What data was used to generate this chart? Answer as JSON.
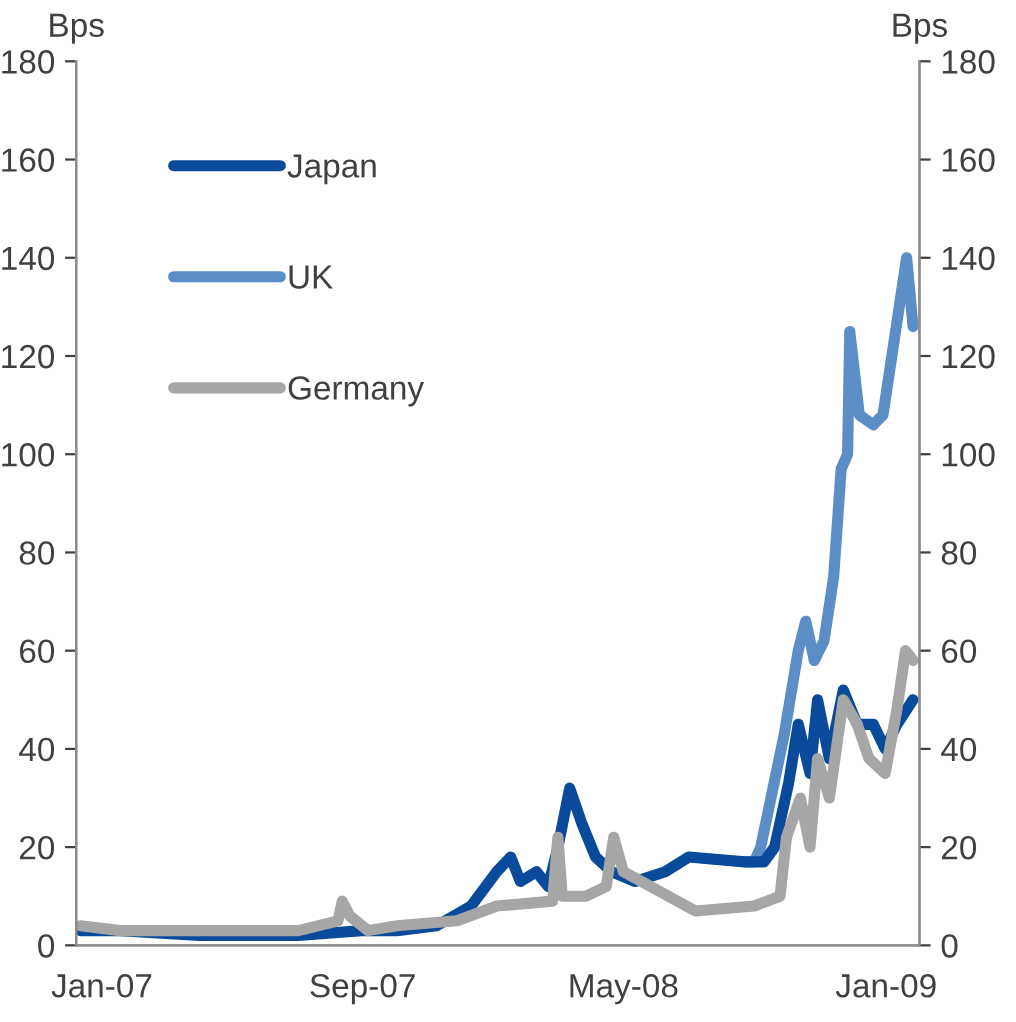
{
  "chart_data": {
    "type": "line",
    "ylabel": "Bps",
    "y2label": "Bps",
    "xlim": [
      "2006-12-08",
      "2009-02-01"
    ],
    "xticks": [
      {
        "value": "2007-01-01",
        "label": "Jan-07"
      },
      {
        "value": "2007-09-01",
        "label": "Sep-07"
      },
      {
        "value": "2008-05-01",
        "label": "May-08"
      },
      {
        "value": "2009-01-01",
        "label": "Jan-09"
      }
    ],
    "ylim": [
      0,
      180
    ],
    "yticks": [
      0,
      20,
      40,
      60,
      80,
      100,
      120,
      140,
      160,
      180
    ],
    "y2lim": [
      0,
      180
    ],
    "y2ticks": [
      0,
      20,
      40,
      60,
      80,
      100,
      120,
      140,
      160,
      180
    ],
    "grid": false,
    "legend": "top left",
    "marker": "none",
    "line_style": "solid",
    "series": [
      {
        "name": "UK",
        "color": "#5b8ec6",
        "x": [
          "2008-08-22",
          "2008-08-31",
          "2008-09-06",
          "2008-09-28",
          "2008-10-11",
          "2008-10-18",
          "2008-10-26",
          "2008-11-04",
          "2008-11-13",
          "2008-11-20",
          "2008-11-26",
          "2008-11-28",
          "2008-12-07",
          "2008-12-20",
          "2008-12-29",
          "2009-01-20",
          "2009-01-26"
        ],
        "values": [
          17,
          17,
          20,
          43,
          60,
          66,
          58,
          62,
          75,
          97,
          100,
          125,
          108,
          106,
          108,
          140,
          126
        ]
      },
      {
        "name": "Japan",
        "color": "#0a4a9a",
        "x": [
          "2006-12-12",
          "2007-01-18",
          "2007-04-02",
          "2007-07-03",
          "2007-08-31",
          "2007-10-03",
          "2007-11-09",
          "2007-12-11",
          "2008-01-04",
          "2008-01-17",
          "2008-01-26",
          "2008-02-10",
          "2008-02-21",
          "2008-03-01",
          "2008-03-12",
          "2008-03-23",
          "2008-04-05",
          "2008-04-20",
          "2008-05-12",
          "2008-06-09",
          "2008-07-01",
          "2008-08-22",
          "2008-09-09",
          "2008-09-19",
          "2008-10-02",
          "2008-10-11",
          "2008-10-22",
          "2008-10-29",
          "2008-11-09",
          "2008-11-22",
          "2008-12-05",
          "2008-12-20",
          "2008-12-31",
          "2009-01-11",
          "2009-01-26"
        ],
        "values": [
          3,
          3,
          2,
          2,
          3,
          3,
          4,
          8,
          15,
          18,
          13,
          15,
          12,
          20,
          32,
          25,
          18,
          15,
          13,
          15,
          18,
          17,
          17,
          20,
          33,
          45,
          35,
          50,
          38,
          52,
          45,
          45,
          40,
          45,
          50
        ]
      },
      {
        "name": "Germany",
        "color": "#a6a6a6",
        "x": [
          "2006-12-12",
          "2007-01-18",
          "2007-04-02",
          "2007-07-03",
          "2007-08-09",
          "2007-08-13",
          "2007-08-20",
          "2007-09-06",
          "2007-10-03",
          "2007-11-28",
          "2008-01-04",
          "2008-02-25",
          "2008-03-01",
          "2008-03-05",
          "2008-03-27",
          "2008-04-15",
          "2008-04-22",
          "2008-05-01",
          "2008-07-07",
          "2008-08-31",
          "2008-09-24",
          "2008-09-30",
          "2008-10-13",
          "2008-10-22",
          "2008-10-29",
          "2008-11-09",
          "2008-11-22",
          "2008-12-05",
          "2008-12-16",
          "2008-12-31",
          "2009-01-11",
          "2009-01-19",
          "2009-01-26"
        ],
        "values": [
          4,
          3,
          3,
          3,
          5,
          9,
          6,
          3,
          4,
          5,
          8,
          9,
          22,
          10,
          10,
          12,
          22,
          15,
          7,
          8,
          10,
          22,
          30,
          20,
          38,
          30,
          50,
          45,
          38,
          35,
          48,
          60,
          58
        ]
      }
    ]
  }
}
